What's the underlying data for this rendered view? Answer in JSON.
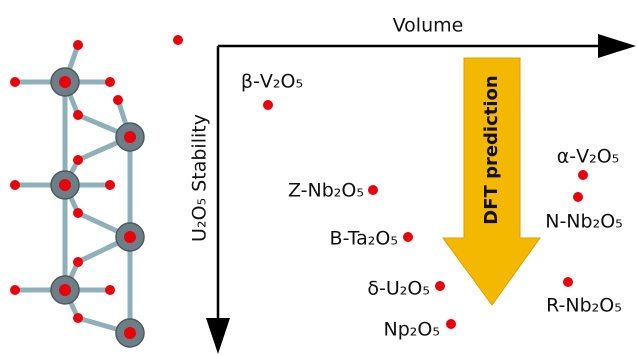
{
  "axes": {
    "x_label": "Volume",
    "y_label": "U₂O₅ Stability"
  },
  "arrow_label": "DFT prediction",
  "points": [
    {
      "label": "β-V₂O₅"
    },
    {
      "label": "Z-Nb₂O₅"
    },
    {
      "label": "B-Ta₂O₅"
    },
    {
      "label": "δ-U₂O₅"
    },
    {
      "label": "Np₂O₅"
    },
    {
      "label": "α-V₂O₅"
    },
    {
      "label": "N-Nb₂O₅"
    },
    {
      "label": "R-Nb₂O₅"
    }
  ]
}
